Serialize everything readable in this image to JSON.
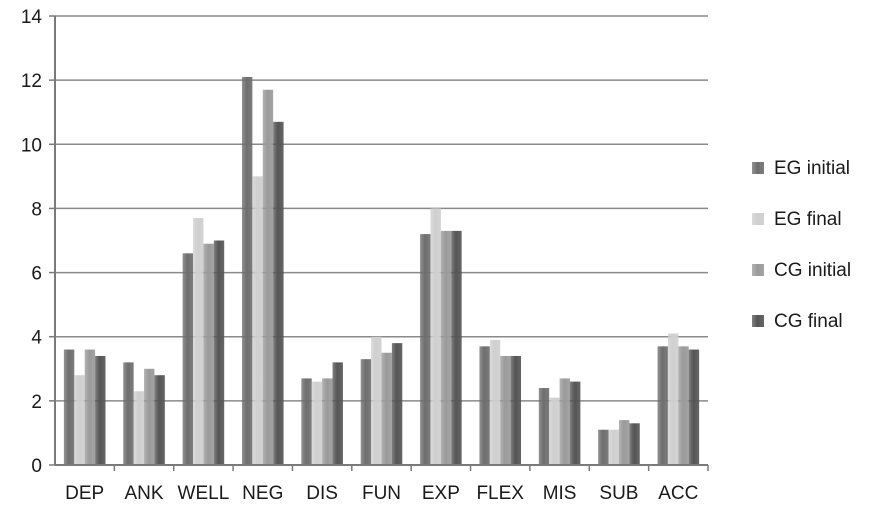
{
  "chart_data": {
    "type": "bar",
    "title": "",
    "xlabel": "",
    "ylabel": "",
    "ylim": [
      0,
      14
    ],
    "yticks": [
      0,
      2,
      4,
      6,
      8,
      10,
      12,
      14
    ],
    "grid": true,
    "legend_position": "right",
    "categories": [
      "DEP",
      "ANK",
      "WELL",
      "NEG",
      "DIS",
      "FUN",
      "EXP",
      "FLEX",
      "MIS",
      "SUB",
      "ACC"
    ],
    "series": [
      {
        "name": "EG initial",
        "color": "#6e6e6e",
        "values": [
          3.6,
          3.2,
          6.6,
          12.1,
          2.7,
          3.3,
          7.2,
          3.7,
          2.4,
          1.1,
          3.7
        ]
      },
      {
        "name": "EG final",
        "color": "#cfcfcf",
        "values": [
          2.8,
          2.3,
          7.7,
          9.0,
          2.6,
          4.0,
          8.0,
          3.9,
          2.1,
          1.1,
          4.1
        ]
      },
      {
        "name": "CG initial",
        "color": "#9a9a9a",
        "values": [
          3.6,
          3.0,
          6.9,
          11.7,
          2.7,
          3.5,
          7.3,
          3.4,
          2.7,
          1.4,
          3.7
        ]
      },
      {
        "name": "CG final",
        "color": "#555555",
        "values": [
          3.4,
          2.8,
          7.0,
          10.7,
          3.2,
          3.8,
          7.3,
          3.4,
          2.6,
          1.3,
          3.6
        ]
      }
    ]
  }
}
